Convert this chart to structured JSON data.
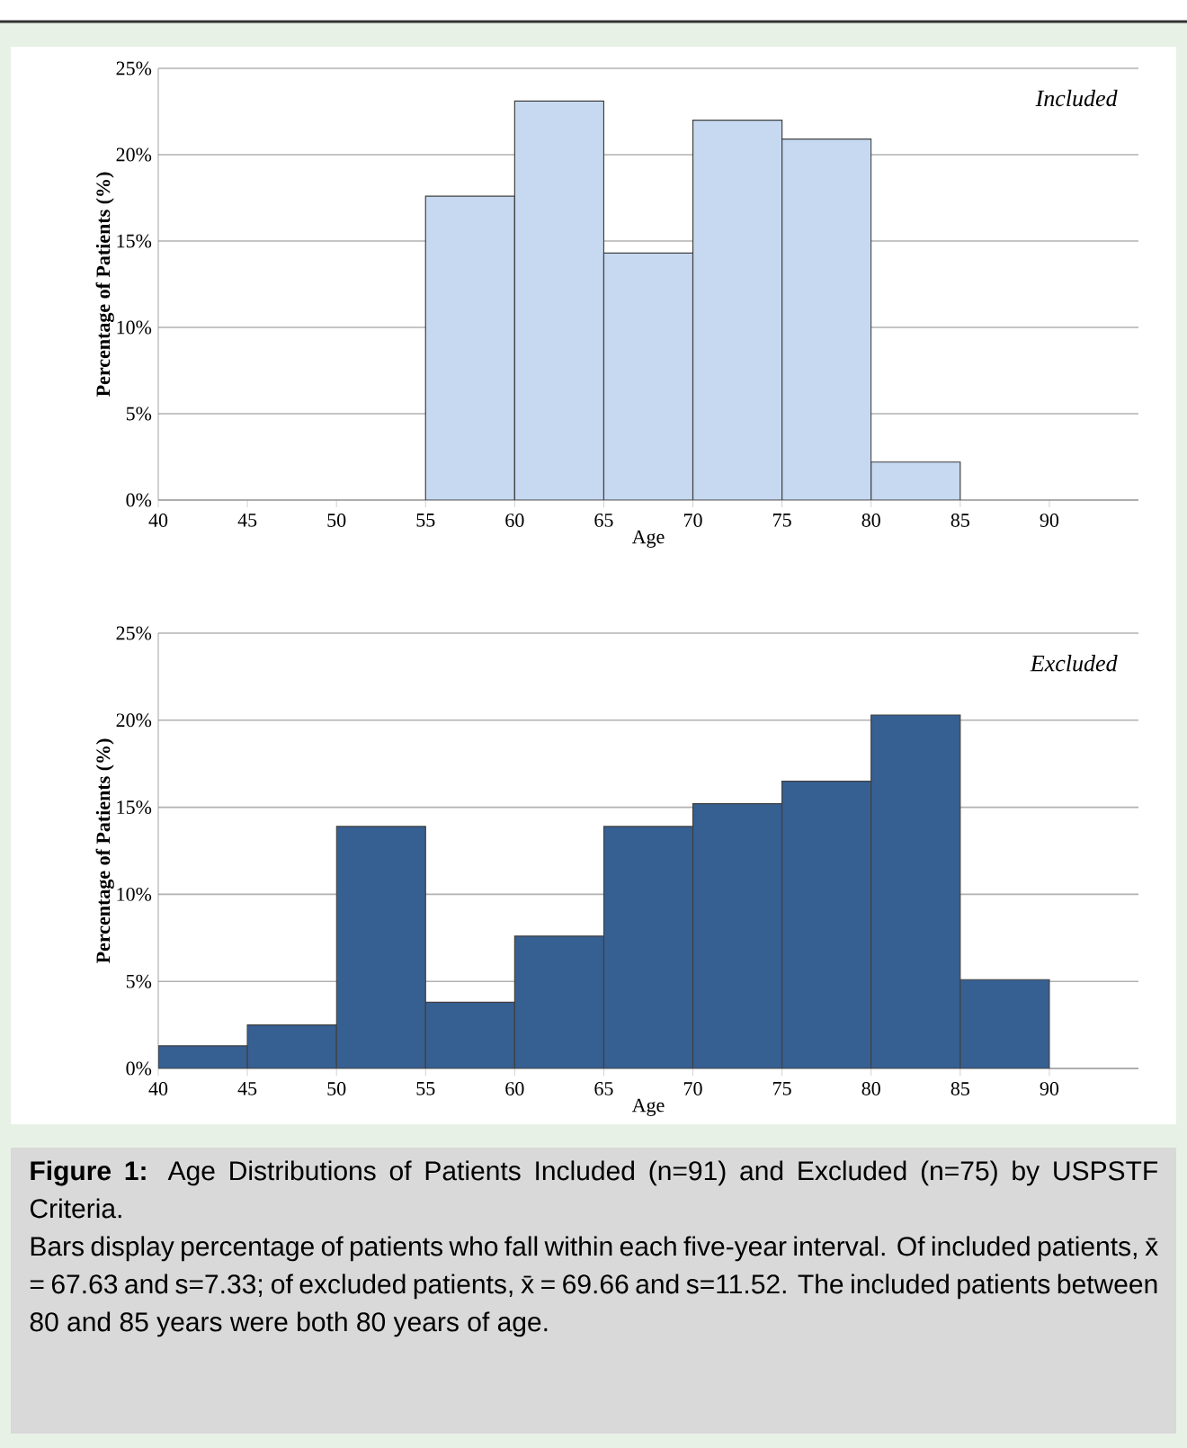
{
  "chart_data": [
    {
      "type": "histogram",
      "title": "Included",
      "xlabel": "Age",
      "ylabel": "Percentage of Patients (%)",
      "bins": [
        55,
        60,
        65,
        70,
        75,
        80,
        85
      ],
      "values": [
        17.6,
        23.1,
        14.3,
        22.0,
        20.9,
        2.2
      ],
      "color": "#c6d9f1",
      "xlim": [
        40,
        95
      ],
      "xticks": [
        40,
        45,
        50,
        55,
        60,
        65,
        70,
        75,
        80,
        85,
        90
      ],
      "ylim": [
        0,
        25
      ],
      "yticks": [
        {
          "value": 0,
          "label": "0%"
        },
        {
          "value": 5,
          "label": "5%"
        },
        {
          "value": 10,
          "label": "10%"
        },
        {
          "value": 15,
          "label": "15%"
        },
        {
          "value": 20,
          "label": "20%"
        },
        {
          "value": 25,
          "label": "25%"
        }
      ],
      "grid": "y"
    },
    {
      "type": "histogram",
      "title": "Excluded",
      "xlabel": "Age",
      "ylabel": "Percentage of Patients (%)",
      "bins": [
        40,
        45,
        50,
        55,
        60,
        65,
        70,
        75,
        80,
        85,
        90
      ],
      "values": [
        1.3,
        2.5,
        13.9,
        3.8,
        7.6,
        13.9,
        15.2,
        16.5,
        20.3,
        5.1
      ],
      "color": "#365f92",
      "xlim": [
        40,
        95
      ],
      "xticks": [
        40,
        45,
        50,
        55,
        60,
        65,
        70,
        75,
        80,
        85,
        90
      ],
      "ylim": [
        0,
        25
      ],
      "yticks": [
        {
          "value": 0,
          "label": "0%"
        },
        {
          "value": 5,
          "label": "5%"
        },
        {
          "value": 10,
          "label": "10%"
        },
        {
          "value": 15,
          "label": "15%"
        },
        {
          "value": 20,
          "label": "20%"
        },
        {
          "value": 25,
          "label": "25%"
        }
      ],
      "grid": "y",
      "annotations": [
        "**Figure 1:** Age Distributions of Patients Included (n=91) and Excluded (n=75) by USPSTF Criteria.",
        "Bars display percentage of patients who fall within each five-year interval. Of included patients, x̄ = 67.63 and s=7.33; of excluded patients, x̄ = 69.66 and s=11.52. The included patients between 80 and 85 years were both 80 years of age."
      ]
    }
  ]
}
